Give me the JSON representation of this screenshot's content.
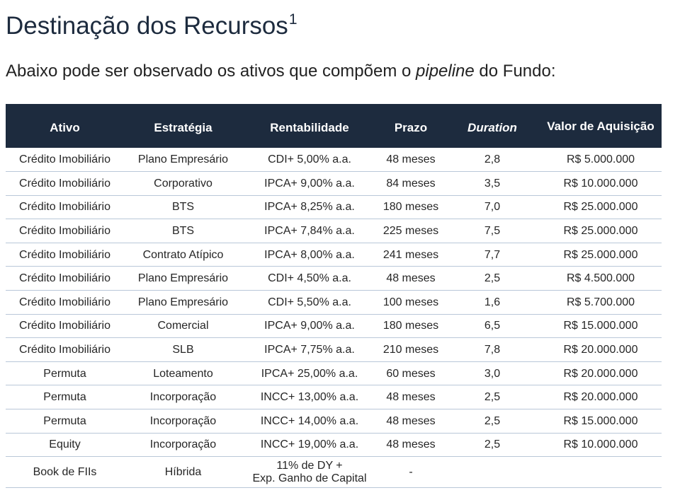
{
  "header": {
    "title": "Destinação dos Recursos",
    "title_sup": "1",
    "subtitle_pre": "Abaixo pode ser observado os ativos que compõem o ",
    "subtitle_em": "pipeline",
    "subtitle_post": " do Fundo:"
  },
  "colors": {
    "header_bg": "#1d2b3e",
    "row_border": "#b9c7d8"
  },
  "table": {
    "columns": [
      "Ativo",
      "Estratégia",
      "Rentabilidade",
      "Prazo",
      "Duration",
      "Valor de Aquisição"
    ],
    "rows": [
      [
        "Crédito Imobiliário",
        "Plano Empresário",
        "CDI+ 5,00% a.a.",
        "48 meses",
        "2,8",
        "R$ 5.000.000"
      ],
      [
        "Crédito Imobiliário",
        "Corporativo",
        "IPCA+ 9,00% a.a.",
        "84 meses",
        "3,5",
        "R$ 10.000.000"
      ],
      [
        "Crédito Imobiliário",
        "BTS",
        "IPCA+ 8,25% a.a.",
        "180 meses",
        "7,0",
        "R$ 25.000.000"
      ],
      [
        "Crédito Imobiliário",
        "BTS",
        "IPCA+ 7,84% a.a.",
        "225 meses",
        "7,5",
        "R$ 25.000.000"
      ],
      [
        "Crédito Imobiliário",
        "Contrato Atípico",
        "IPCA+ 8,00% a.a.",
        "241 meses",
        "7,7",
        "R$ 25.000.000"
      ],
      [
        "Crédito Imobiliário",
        "Plano Empresário",
        "CDI+ 4,50% a.a.",
        "48 meses",
        "2,5",
        "R$ 4.500.000"
      ],
      [
        "Crédito Imobiliário",
        "Plano Empresário",
        "CDI+ 5,50% a.a.",
        "100 meses",
        "1,6",
        "R$ 5.700.000"
      ],
      [
        "Crédito Imobiliário",
        "Comercial",
        "IPCA+ 9,00% a.a.",
        "180 meses",
        "6,5",
        "R$ 15.000.000"
      ],
      [
        "Crédito Imobiliário",
        "SLB",
        "IPCA+ 7,75% a.a.",
        "210 meses",
        "7,8",
        "R$ 20.000.000"
      ],
      [
        "Permuta",
        "Loteamento",
        "IPCA+ 25,00% a.a.",
        "60 meses",
        "3,0",
        "R$ 20.000.000"
      ],
      [
        "Permuta",
        "Incorporação",
        "INCC+ 13,00% a.a.",
        "48 meses",
        "2,5",
        "R$ 20.000.000"
      ],
      [
        "Permuta",
        "Incorporação",
        "INCC+ 14,00% a.a.",
        "48 meses",
        "2,5",
        "R$ 15.000.000"
      ],
      [
        "Equity",
        "Incorporação",
        "INCC+ 19,00% a.a.",
        "48 meses",
        "2,5",
        "R$ 10.000.000"
      ]
    ],
    "last_row": {
      "ativo": "Book de FIIs",
      "estrategia": "Híbrida",
      "rentabilidade_line1": "11% de DY +",
      "rentabilidade_line2": "Exp. Ganho de Capital",
      "prazo": "-",
      "duration": "",
      "valor": ""
    }
  }
}
